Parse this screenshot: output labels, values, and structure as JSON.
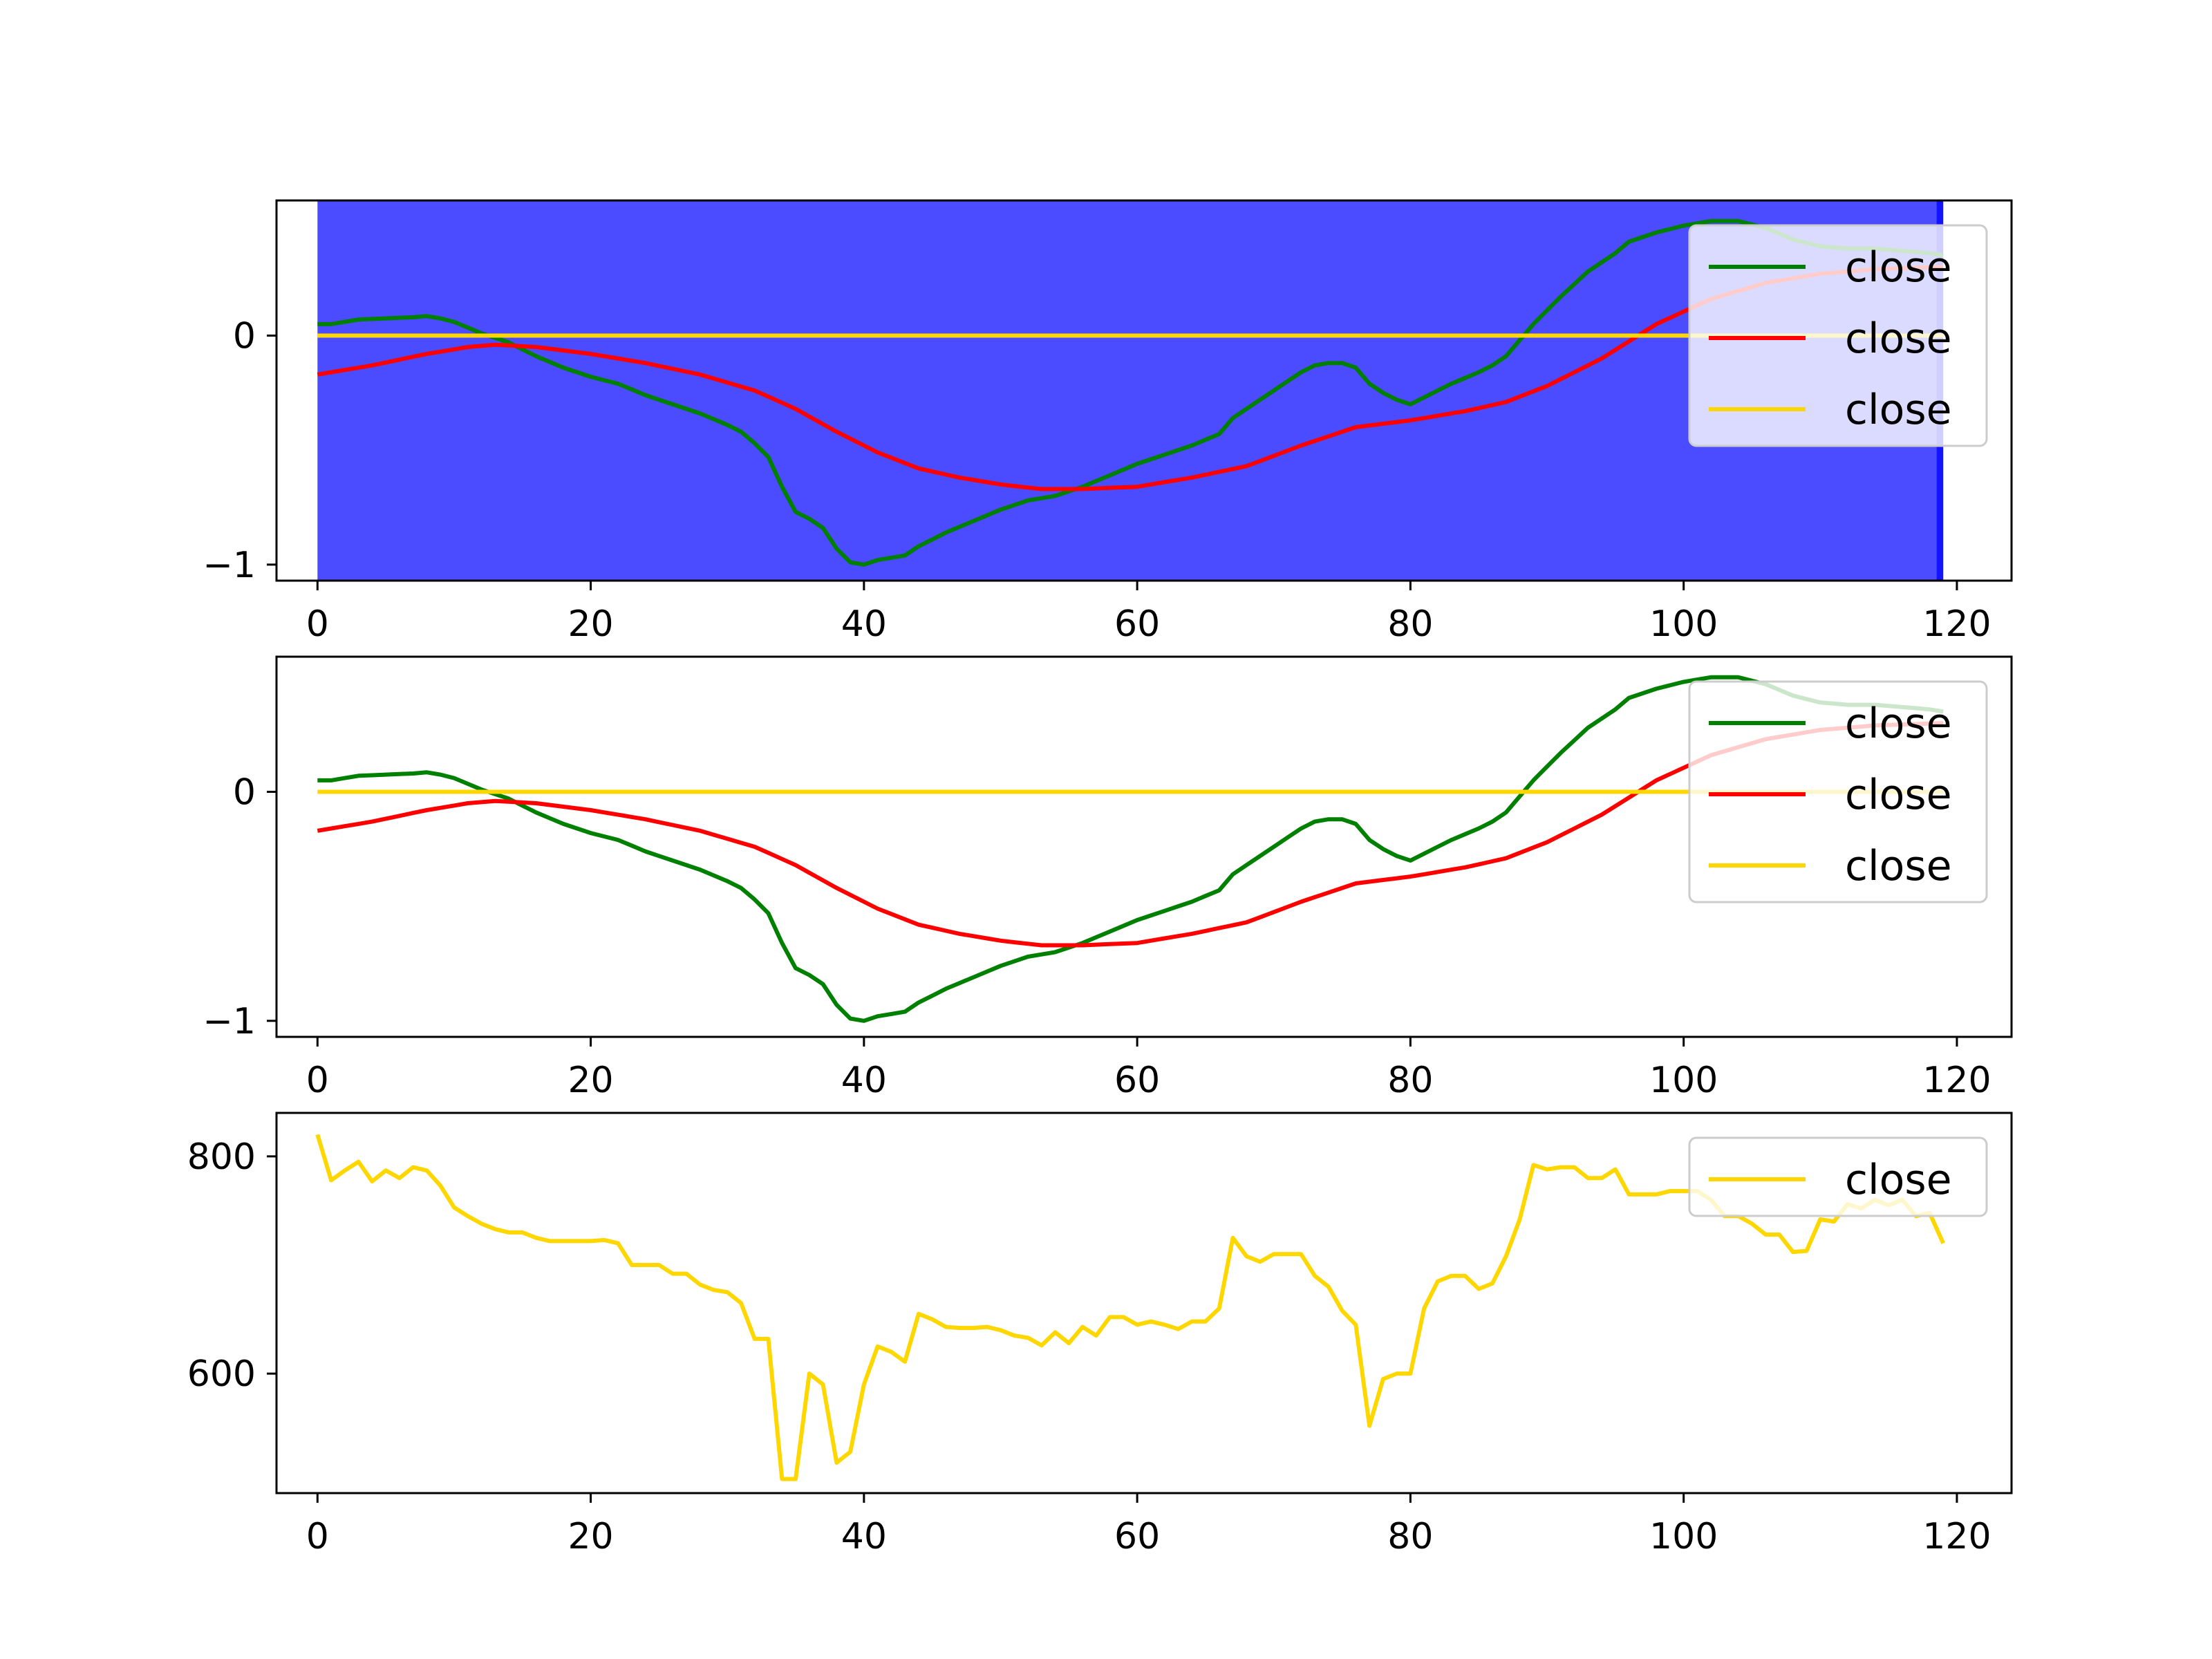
{
  "chart_data": [
    {
      "type": "line",
      "panel": "top",
      "span": {
        "x_start": 0,
        "x_end": 118.5,
        "color": "#4b4bff"
      },
      "span_edge": {
        "x_start": 118.5,
        "x_end": 119,
        "color": "#1414ff"
      },
      "xlim": [
        -3,
        124
      ],
      "ylim": [
        -1.07,
        0.59
      ],
      "xticks": [
        0,
        20,
        40,
        60,
        80,
        100,
        120
      ],
      "yticks": [
        0,
        -1
      ],
      "ytick_labels": [
        "0",
        "−1"
      ],
      "xtick_labels": [
        "0",
        "20",
        "40",
        "60",
        "80",
        "100",
        "120"
      ],
      "legend": {
        "position": "upper-right",
        "entries": [
          "close",
          "close",
          "close"
        ]
      },
      "series": [
        {
          "name": "close",
          "color": "#008000",
          "key": "green"
        },
        {
          "name": "close",
          "color": "#ff0000",
          "key": "red"
        },
        {
          "name": "close",
          "color": "#ffd700",
          "key": "gold"
        }
      ]
    },
    {
      "type": "line",
      "panel": "middle",
      "xlim": [
        -3,
        124
      ],
      "ylim": [
        -1.07,
        0.59
      ],
      "xticks": [
        0,
        20,
        40,
        60,
        80,
        100,
        120
      ],
      "yticks": [
        0,
        -1
      ],
      "ytick_labels": [
        "0",
        "−1"
      ],
      "xtick_labels": [
        "0",
        "20",
        "40",
        "60",
        "80",
        "100",
        "120"
      ],
      "legend": {
        "position": "upper-right",
        "entries": [
          "close",
          "close",
          "close"
        ]
      },
      "series": [
        {
          "name": "close",
          "color": "#008000",
          "key": "green"
        },
        {
          "name": "close",
          "color": "#ff0000",
          "key": "red"
        },
        {
          "name": "close",
          "color": "#ffd700",
          "key": "gold"
        }
      ]
    },
    {
      "type": "line",
      "panel": "bottom",
      "xlim": [
        -3,
        124
      ],
      "ylim": [
        490,
        840
      ],
      "xticks": [
        0,
        20,
        40,
        60,
        80,
        100,
        120
      ],
      "yticks": [
        800,
        600
      ],
      "ytick_labels": [
        "800",
        "600"
      ],
      "xtick_labels": [
        "0",
        "20",
        "40",
        "60",
        "80",
        "100",
        "120"
      ],
      "legend": {
        "position": "upper-right",
        "entries": [
          "close"
        ]
      },
      "series": [
        {
          "name": "close",
          "color": "#ffd700",
          "key": "price"
        }
      ]
    }
  ],
  "shared_series": {
    "x_start": 0,
    "x_end": 119,
    "green_keypoints": [
      [
        0,
        0.05
      ],
      [
        1,
        0.05
      ],
      [
        2,
        0.06
      ],
      [
        3,
        0.07
      ],
      [
        5,
        0.075
      ],
      [
        7,
        0.08
      ],
      [
        8,
        0.085
      ],
      [
        9,
        0.075
      ],
      [
        10,
        0.06
      ],
      [
        12,
        0.01
      ],
      [
        14,
        -0.03
      ],
      [
        16,
        -0.09
      ],
      [
        18,
        -0.14
      ],
      [
        20,
        -0.18
      ],
      [
        22,
        -0.21
      ],
      [
        24,
        -0.26
      ],
      [
        26,
        -0.3
      ],
      [
        28,
        -0.34
      ],
      [
        30,
        -0.39
      ],
      [
        31,
        -0.42
      ],
      [
        32,
        -0.47
      ],
      [
        33,
        -0.53
      ],
      [
        34,
        -0.66
      ],
      [
        35,
        -0.77
      ],
      [
        36,
        -0.8
      ],
      [
        37,
        -0.84
      ],
      [
        38,
        -0.93
      ],
      [
        39,
        -0.99
      ],
      [
        40,
        -1.0
      ],
      [
        41,
        -0.98
      ],
      [
        42,
        -0.97
      ],
      [
        43,
        -0.96
      ],
      [
        44,
        -0.92
      ],
      [
        46,
        -0.86
      ],
      [
        48,
        -0.81
      ],
      [
        50,
        -0.76
      ],
      [
        52,
        -0.72
      ],
      [
        54,
        -0.7
      ],
      [
        56,
        -0.66
      ],
      [
        58,
        -0.61
      ],
      [
        60,
        -0.56
      ],
      [
        62,
        -0.52
      ],
      [
        64,
        -0.48
      ],
      [
        66,
        -0.43
      ],
      [
        67,
        -0.36
      ],
      [
        68,
        -0.32
      ],
      [
        70,
        -0.24
      ],
      [
        72,
        -0.16
      ],
      [
        73,
        -0.13
      ],
      [
        74,
        -0.12
      ],
      [
        75,
        -0.12
      ],
      [
        76,
        -0.14
      ],
      [
        77,
        -0.21
      ],
      [
        78,
        -0.25
      ],
      [
        79,
        -0.28
      ],
      [
        80,
        -0.3
      ],
      [
        81,
        -0.27
      ],
      [
        83,
        -0.21
      ],
      [
        85,
        -0.16
      ],
      [
        86,
        -0.13
      ],
      [
        87,
        -0.09
      ],
      [
        88,
        -0.02
      ],
      [
        89,
        0.05
      ],
      [
        91,
        0.17
      ],
      [
        93,
        0.28
      ],
      [
        95,
        0.36
      ],
      [
        96,
        0.41
      ],
      [
        98,
        0.45
      ],
      [
        100,
        0.48
      ],
      [
        101,
        0.49
      ],
      [
        102,
        0.5
      ],
      [
        103,
        0.5
      ],
      [
        104,
        0.5
      ],
      [
        106,
        0.47
      ],
      [
        108,
        0.42
      ],
      [
        110,
        0.39
      ],
      [
        112,
        0.38
      ],
      [
        114,
        0.38
      ],
      [
        116,
        0.37
      ],
      [
        118,
        0.36
      ],
      [
        119,
        0.35
      ]
    ],
    "red_keypoints": [
      [
        0,
        -0.17
      ],
      [
        4,
        -0.13
      ],
      [
        8,
        -0.08
      ],
      [
        11,
        -0.05
      ],
      [
        13,
        -0.04
      ],
      [
        16,
        -0.05
      ],
      [
        20,
        -0.08
      ],
      [
        24,
        -0.12
      ],
      [
        28,
        -0.17
      ],
      [
        32,
        -0.24
      ],
      [
        35,
        -0.32
      ],
      [
        38,
        -0.42
      ],
      [
        41,
        -0.51
      ],
      [
        44,
        -0.58
      ],
      [
        47,
        -0.62
      ],
      [
        50,
        -0.65
      ],
      [
        53,
        -0.67
      ],
      [
        56,
        -0.67
      ],
      [
        60,
        -0.66
      ],
      [
        64,
        -0.62
      ],
      [
        68,
        -0.57
      ],
      [
        72,
        -0.48
      ],
      [
        76,
        -0.4
      ],
      [
        80,
        -0.37
      ],
      [
        84,
        -0.33
      ],
      [
        87,
        -0.29
      ],
      [
        90,
        -0.22
      ],
      [
        94,
        -0.1
      ],
      [
        98,
        0.05
      ],
      [
        102,
        0.16
      ],
      [
        106,
        0.23
      ],
      [
        110,
        0.27
      ],
      [
        114,
        0.29
      ],
      [
        119,
        0.3
      ]
    ],
    "gold_keypoints": [
      [
        0,
        0
      ],
      [
        119,
        0
      ]
    ],
    "price_keypoints": [
      [
        0,
        820
      ],
      [
        1,
        778
      ],
      [
        2,
        787
      ],
      [
        3,
        795
      ],
      [
        4,
        777
      ],
      [
        5,
        787
      ],
      [
        6,
        780
      ],
      [
        7,
        790
      ],
      [
        8,
        787
      ],
      [
        9,
        773
      ],
      [
        10,
        753
      ],
      [
        11,
        745
      ],
      [
        12,
        738
      ],
      [
        13,
        733
      ],
      [
        14,
        730
      ],
      [
        15,
        730
      ],
      [
        16,
        725
      ],
      [
        17,
        722
      ],
      [
        18,
        722
      ],
      [
        19,
        722
      ],
      [
        20,
        722
      ],
      [
        21,
        723
      ],
      [
        22,
        720
      ],
      [
        23,
        700
      ],
      [
        24,
        700
      ],
      [
        25,
        700
      ],
      [
        26,
        692
      ],
      [
        27,
        692
      ],
      [
        28,
        682
      ],
      [
        29,
        677
      ],
      [
        30,
        675
      ],
      [
        31,
        665
      ],
      [
        32,
        632
      ],
      [
        33,
        632
      ],
      [
        34,
        503
      ],
      [
        35,
        503
      ],
      [
        36,
        600
      ],
      [
        37,
        590
      ],
      [
        38,
        518
      ],
      [
        39,
        528
      ],
      [
        40,
        590
      ],
      [
        41,
        625
      ],
      [
        42,
        620
      ],
      [
        43,
        611
      ],
      [
        44,
        655
      ],
      [
        45,
        650
      ],
      [
        46,
        643
      ],
      [
        47,
        642
      ],
      [
        48,
        642
      ],
      [
        49,
        643
      ],
      [
        50,
        640
      ],
      [
        51,
        635
      ],
      [
        52,
        633
      ],
      [
        53,
        626
      ],
      [
        54,
        638
      ],
      [
        55,
        628
      ],
      [
        56,
        643
      ],
      [
        57,
        635
      ],
      [
        58,
        652
      ],
      [
        59,
        652
      ],
      [
        60,
        645
      ],
      [
        61,
        648
      ],
      [
        62,
        645
      ],
      [
        63,
        641
      ],
      [
        64,
        648
      ],
      [
        65,
        648
      ],
      [
        66,
        660
      ],
      [
        67,
        725
      ],
      [
        68,
        708
      ],
      [
        69,
        703
      ],
      [
        70,
        710
      ],
      [
        71,
        710
      ],
      [
        72,
        710
      ],
      [
        73,
        690
      ],
      [
        74,
        680
      ],
      [
        75,
        658
      ],
      [
        76,
        645
      ],
      [
        77,
        552
      ],
      [
        78,
        595
      ],
      [
        79,
        600
      ],
      [
        80,
        600
      ],
      [
        81,
        660
      ],
      [
        82,
        685
      ],
      [
        83,
        690
      ],
      [
        84,
        690
      ],
      [
        85,
        678
      ],
      [
        86,
        683
      ],
      [
        87,
        708
      ],
      [
        88,
        742
      ],
      [
        89,
        792
      ],
      [
        90,
        788
      ],
      [
        91,
        790
      ],
      [
        92,
        790
      ],
      [
        93,
        780
      ],
      [
        94,
        780
      ],
      [
        95,
        788
      ],
      [
        96,
        765
      ],
      [
        97,
        765
      ],
      [
        98,
        765
      ],
      [
        99,
        768
      ],
      [
        100,
        768
      ],
      [
        101,
        768
      ],
      [
        102,
        760
      ],
      [
        103,
        745
      ],
      [
        104,
        745
      ],
      [
        105,
        738
      ],
      [
        106,
        728
      ],
      [
        107,
        728
      ],
      [
        108,
        712
      ],
      [
        109,
        713
      ],
      [
        110,
        742
      ],
      [
        111,
        740
      ],
      [
        112,
        756
      ],
      [
        113,
        752
      ],
      [
        114,
        760
      ],
      [
        115,
        755
      ],
      [
        116,
        760
      ],
      [
        117,
        745
      ],
      [
        118,
        748
      ],
      [
        119,
        720
      ]
    ]
  }
}
